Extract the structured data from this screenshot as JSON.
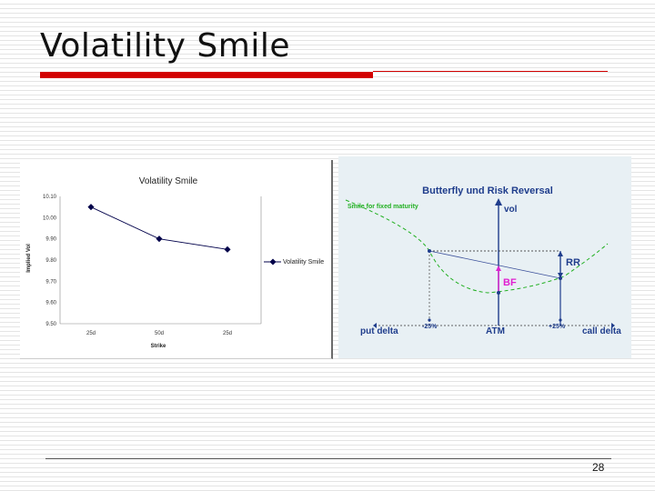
{
  "slide": {
    "title": "Volatility Smile",
    "page_number": "28"
  },
  "colors": {
    "title_rule": "#d30000",
    "series_line": "#00004a",
    "diagram_title": "#1f3d8c",
    "smile_curve": "#22b022",
    "bf_marker": "#e020d0",
    "axis_blue": "#1f3d8c"
  },
  "chart_data": [
    {
      "type": "line",
      "title": "Volatility Smile",
      "xlabel": "Strike",
      "ylabel": "Implied Vol",
      "categories": [
        "25d",
        "50d",
        "25d"
      ],
      "series": [
        {
          "name": "Volatility Smile",
          "values": [
            10.05,
            9.9,
            9.85
          ]
        }
      ],
      "ylim": [
        9.5,
        10.1
      ],
      "y_ticks": [
        "10.10",
        "10.00",
        "9.90",
        "9.80",
        "9.70",
        "9.60",
        "9.50"
      ],
      "legend": "right",
      "grid": false
    },
    {
      "type": "diagram",
      "title": "Butterfly und Risk Reversal",
      "curve_label": "Smile for fixed maturity",
      "y_axis_label": "vol",
      "annotations": [
        "RR",
        "BF"
      ],
      "x_labels": [
        "put delta",
        "-25%",
        "ATM",
        "+25%",
        "call delta"
      ]
    }
  ]
}
